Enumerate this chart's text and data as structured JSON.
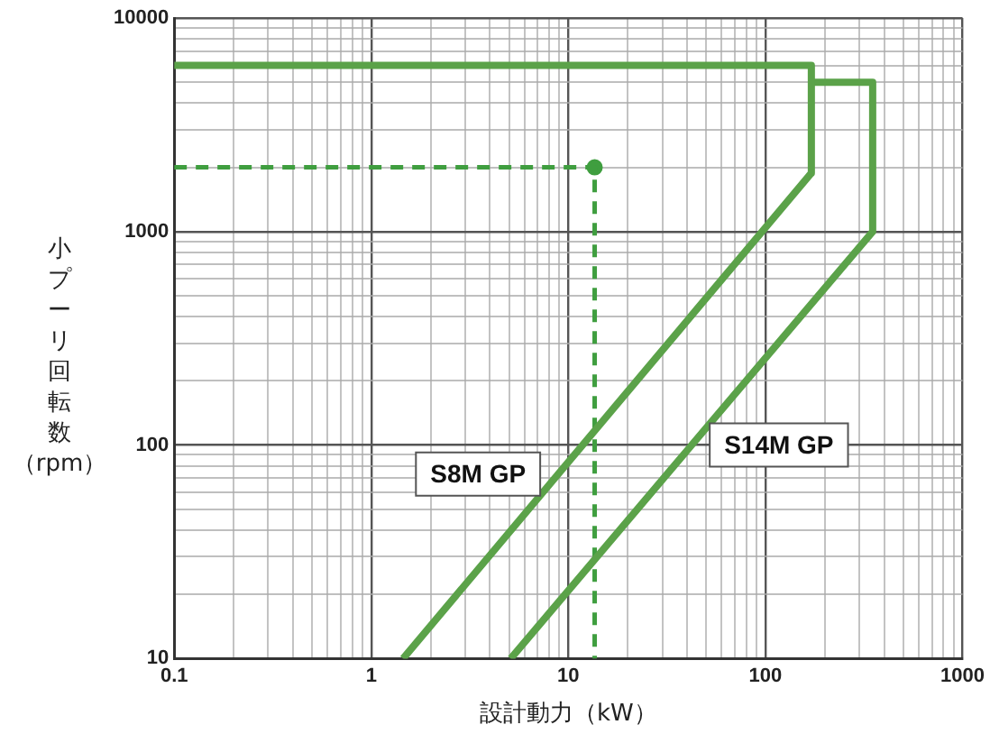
{
  "chart_data": {
    "type": "line",
    "xlabel": "設計動力（kW）",
    "ylabel": "小プーリ回転数（rpm）",
    "log": "xy",
    "xlim": [
      0.1,
      1000
    ],
    "xticks": [
      0.1,
      1,
      10,
      100,
      1000
    ],
    "ylim": [
      10,
      10000
    ],
    "yticks": [
      10,
      100,
      1000,
      10000
    ],
    "grid": true,
    "legend": false,
    "series": [
      {
        "name": "S8M GP",
        "color": "#5ba249",
        "x": [
          0.1,
          171,
          171,
          1.45
        ],
        "values": [
          6000,
          6000,
          1880,
          10
        ],
        "marker": "none",
        "line_style": "solid"
      },
      {
        "name": "S14M GP",
        "color": "#5ba249",
        "x": [
          171,
          350,
          350,
          5.1
        ],
        "values": [
          5000,
          5000,
          1000,
          10
        ],
        "marker": "none",
        "line_style": "solid"
      },
      {
        "type": "line",
        "color": "#3f9e3f",
        "x": [
          0.1,
          13.6,
          13.6
        ],
        "values": [
          2000,
          2000,
          10
        ],
        "marker": "none",
        "line_style": "dashed"
      },
      {
        "type": "scatter",
        "color": "#3f9e3f",
        "x": [
          13.6
        ],
        "values": [
          2000
        ],
        "marker": "circle"
      }
    ]
  }
}
